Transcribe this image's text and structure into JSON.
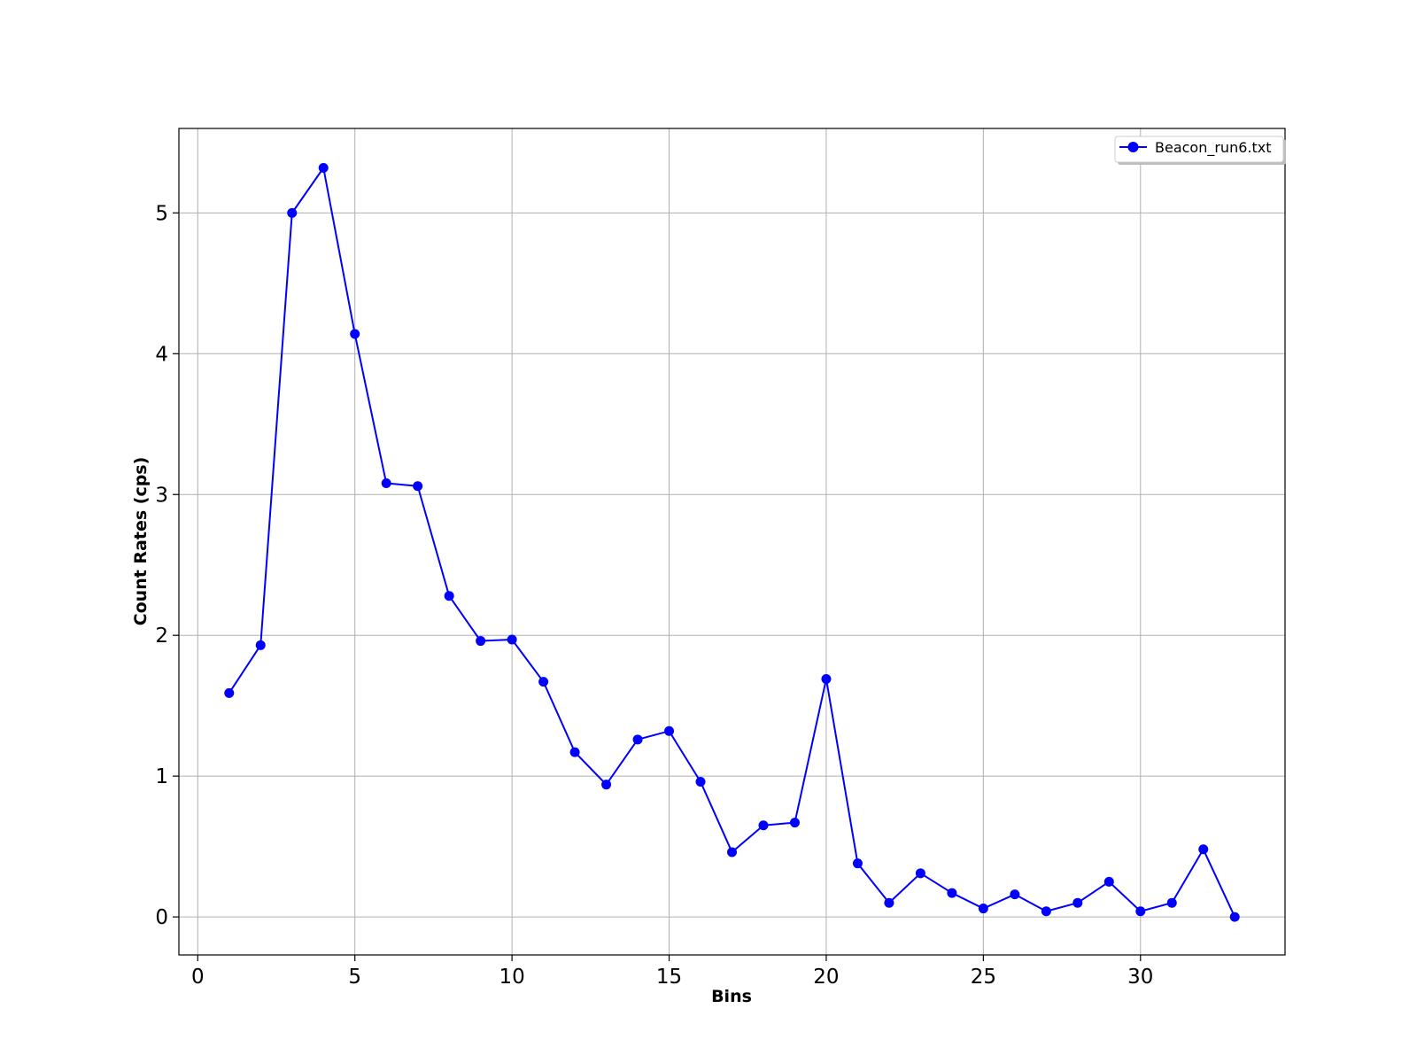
{
  "chart_data": {
    "type": "line",
    "title": "",
    "xlabel": "Bins",
    "ylabel": "Count Rates (cps)",
    "xlim": [
      -0.6,
      34.6
    ],
    "ylim": [
      -0.27,
      5.6
    ],
    "xticks": [
      0,
      5,
      10,
      15,
      20,
      25,
      30
    ],
    "yticks": [
      0,
      1,
      2,
      3,
      4,
      5
    ],
    "grid": true,
    "legend_position": "top-right",
    "series": [
      {
        "name": "Beacon_run6.txt",
        "color": "#0000ff",
        "marker": "circle",
        "x": [
          1,
          2,
          3,
          4,
          5,
          6,
          7,
          8,
          9,
          10,
          11,
          12,
          13,
          14,
          15,
          16,
          17,
          18,
          19,
          20,
          21,
          22,
          23,
          24,
          25,
          26,
          27,
          28,
          29,
          30,
          31,
          32,
          33
        ],
        "y": [
          1.59,
          1.93,
          5.0,
          5.32,
          4.14,
          3.08,
          3.06,
          2.28,
          1.96,
          1.97,
          1.67,
          1.17,
          0.94,
          1.26,
          1.32,
          0.96,
          0.46,
          0.65,
          0.67,
          1.69,
          0.38,
          0.1,
          0.31,
          0.17,
          0.06,
          0.16,
          0.04,
          0.1,
          0.25,
          0.04,
          0.1,
          0.48,
          0.0
        ]
      }
    ]
  }
}
